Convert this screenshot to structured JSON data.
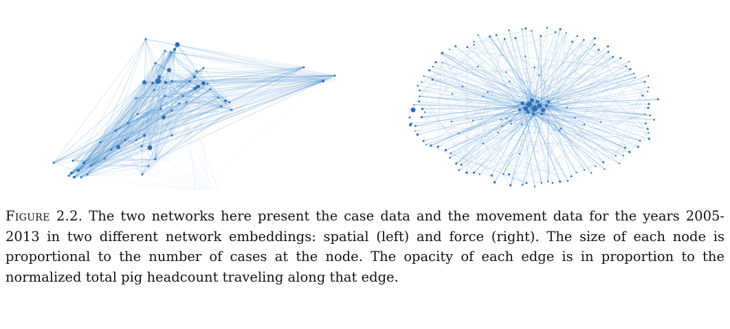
{
  "figure": {
    "panels": [
      {
        "name": "spatial",
        "embedding": "spatial"
      },
      {
        "name": "force",
        "embedding": "force"
      }
    ],
    "node_color": "#2f6fb3",
    "edge_color": "#4a8fd0"
  },
  "caption": {
    "label": "Figure 2.2.",
    "text": "The two networks here present the case data and the movement data for the years 2005-2013 in two different network embeddings: spatial (left) and force (right). The size of each node is proportional to the number of cases at the node. The opacity of each edge is in proportion to the normalized total pig headcount traveling along that edge."
  }
}
